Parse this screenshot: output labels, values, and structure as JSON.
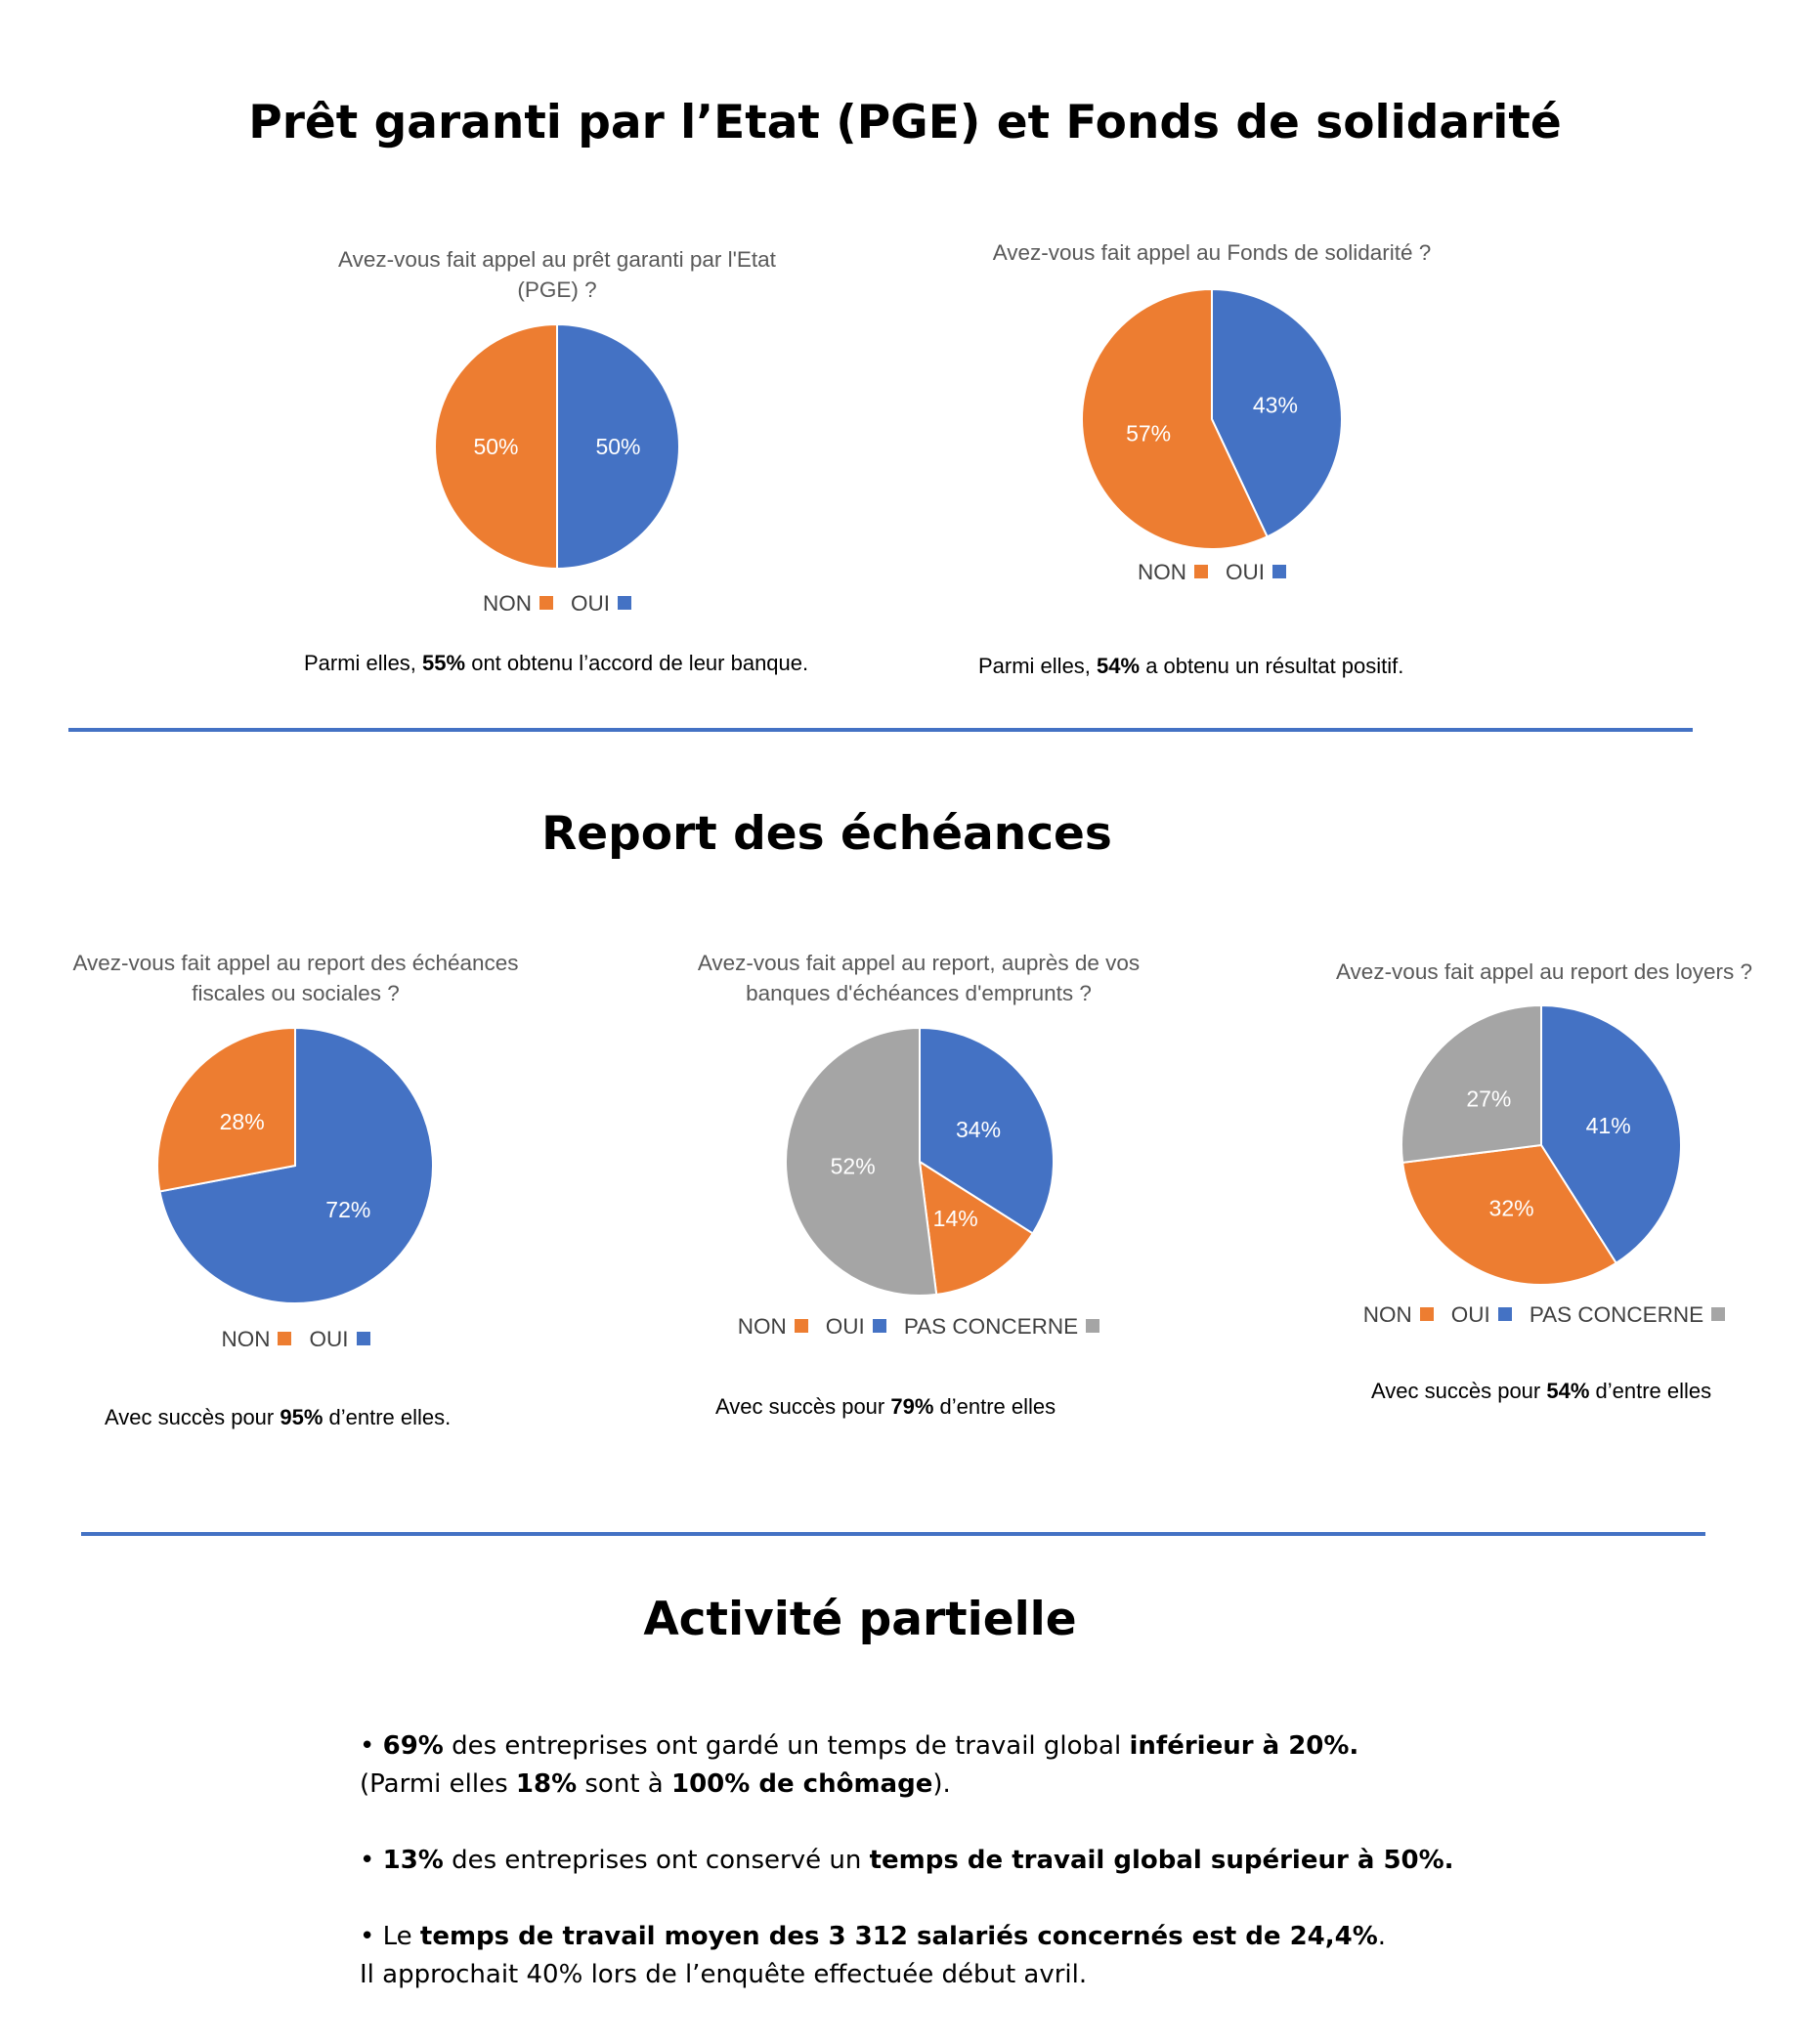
{
  "sections": {
    "s1_title": "Prêt garanti par l’Etat (PGE) et Fonds de solidarité",
    "s2_title": "Report des échéances",
    "s3_title": "Activité partielle"
  },
  "notes": {
    "pge": {
      "pre": "Parmi elles, ",
      "bold": "55%",
      "post": " ont obtenu l’accord de leur banque."
    },
    "fonds": {
      "pre": "Parmi elles, ",
      "bold": "54%",
      "post": " a obtenu un résultat positif."
    },
    "fiscales": {
      "pre": "Avec succès pour ",
      "bold": "95%",
      "post": " d’entre elles."
    },
    "emprunts": {
      "pre": "Avec succès pour ",
      "bold": "79%",
      "post": " d’entre elles"
    },
    "loyers": {
      "pre": "Avec succès pour ",
      "bold": "54%",
      "post": " d’entre elles"
    }
  },
  "activite": {
    "b1": {
      "bullet": "• ",
      "bold1": "69%",
      "t1": " des entreprises ont gardé un temps de travail global ",
      "bold2": "inférieur à 20%."
    },
    "b1_line2": {
      "t1": "(Parmi elles ",
      "bold1": "18%",
      "t2": " sont à ",
      "bold2": "100% de chômage",
      "t3": ")."
    },
    "b2": {
      "bullet": "• ",
      "bold1": "13%",
      "t1": " des entreprises ont conservé un ",
      "bold2": "temps de travail global supérieur à 50%."
    },
    "b3": {
      "bullet": "• Le ",
      "bold1": "temps de travail moyen des 3 312 salariés concernés est de 24,4%",
      "t1": "."
    },
    "b3_line2": "Il approchait 40% lors de l’enquête effectuée début avril."
  },
  "colors": {
    "NON": "#ed7d31",
    "OUI": "#4472c4",
    "PAS CONCERNE": "#a5a5a5",
    "rule": "#4472c4"
  },
  "chart_data": [
    {
      "type": "pie",
      "title": "Avez-vous fait appel au prêt garanti par l'Etat (PGE) ?",
      "title_lines": [
        "Avez-vous fait appel au prêt garanti par l'Etat",
        "(PGE) ?"
      ],
      "categories": [
        "OUI",
        "NON"
      ],
      "values": [
        50,
        50
      ],
      "labels": [
        "50%",
        "50%"
      ],
      "legend": [
        "NON",
        "OUI"
      ],
      "legend_position": "bottom"
    },
    {
      "type": "pie",
      "title": "Avez-vous fait appel au Fonds de solidarité ?",
      "title_lines": [
        "Avez-vous fait appel au Fonds de solidarité ?"
      ],
      "categories": [
        "OUI",
        "NON"
      ],
      "values": [
        43,
        57
      ],
      "labels": [
        "43%",
        "57%"
      ],
      "legend": [
        "NON",
        "OUI"
      ],
      "legend_position": "bottom"
    },
    {
      "type": "pie",
      "title": "Avez-vous fait appel au report des échéances fiscales ou sociales ?",
      "title_lines": [
        "Avez-vous fait appel au report des échéances",
        "fiscales ou sociales ?"
      ],
      "categories": [
        "OUI",
        "NON"
      ],
      "values": [
        72,
        28
      ],
      "labels": [
        "72%",
        "28%"
      ],
      "legend": [
        "NON",
        "OUI"
      ],
      "legend_position": "bottom"
    },
    {
      "type": "pie",
      "title": "Avez-vous fait appel au report, auprès de vos banques d'échéances d'emprunts ?",
      "title_lines": [
        "Avez-vous fait appel au report, auprès de vos",
        "banques d'échéances d'emprunts ?"
      ],
      "categories": [
        "OUI",
        "NON",
        "PAS CONCERNE"
      ],
      "values": [
        34,
        14,
        52
      ],
      "labels": [
        "34%",
        "14%",
        "52%"
      ],
      "legend": [
        "NON",
        "OUI",
        "PAS CONCERNE"
      ],
      "legend_position": "bottom"
    },
    {
      "type": "pie",
      "title": "Avez-vous fait appel au report des loyers ?",
      "title_lines": [
        "Avez-vous fait appel au report des loyers ?"
      ],
      "categories": [
        "OUI",
        "NON",
        "PAS CONCERNE"
      ],
      "values": [
        41,
        32,
        27
      ],
      "labels": [
        "41%",
        "32%",
        "27%"
      ],
      "legend": [
        "NON",
        "OUI",
        "PAS CONCERNE"
      ],
      "legend_position": "bottom"
    }
  ]
}
